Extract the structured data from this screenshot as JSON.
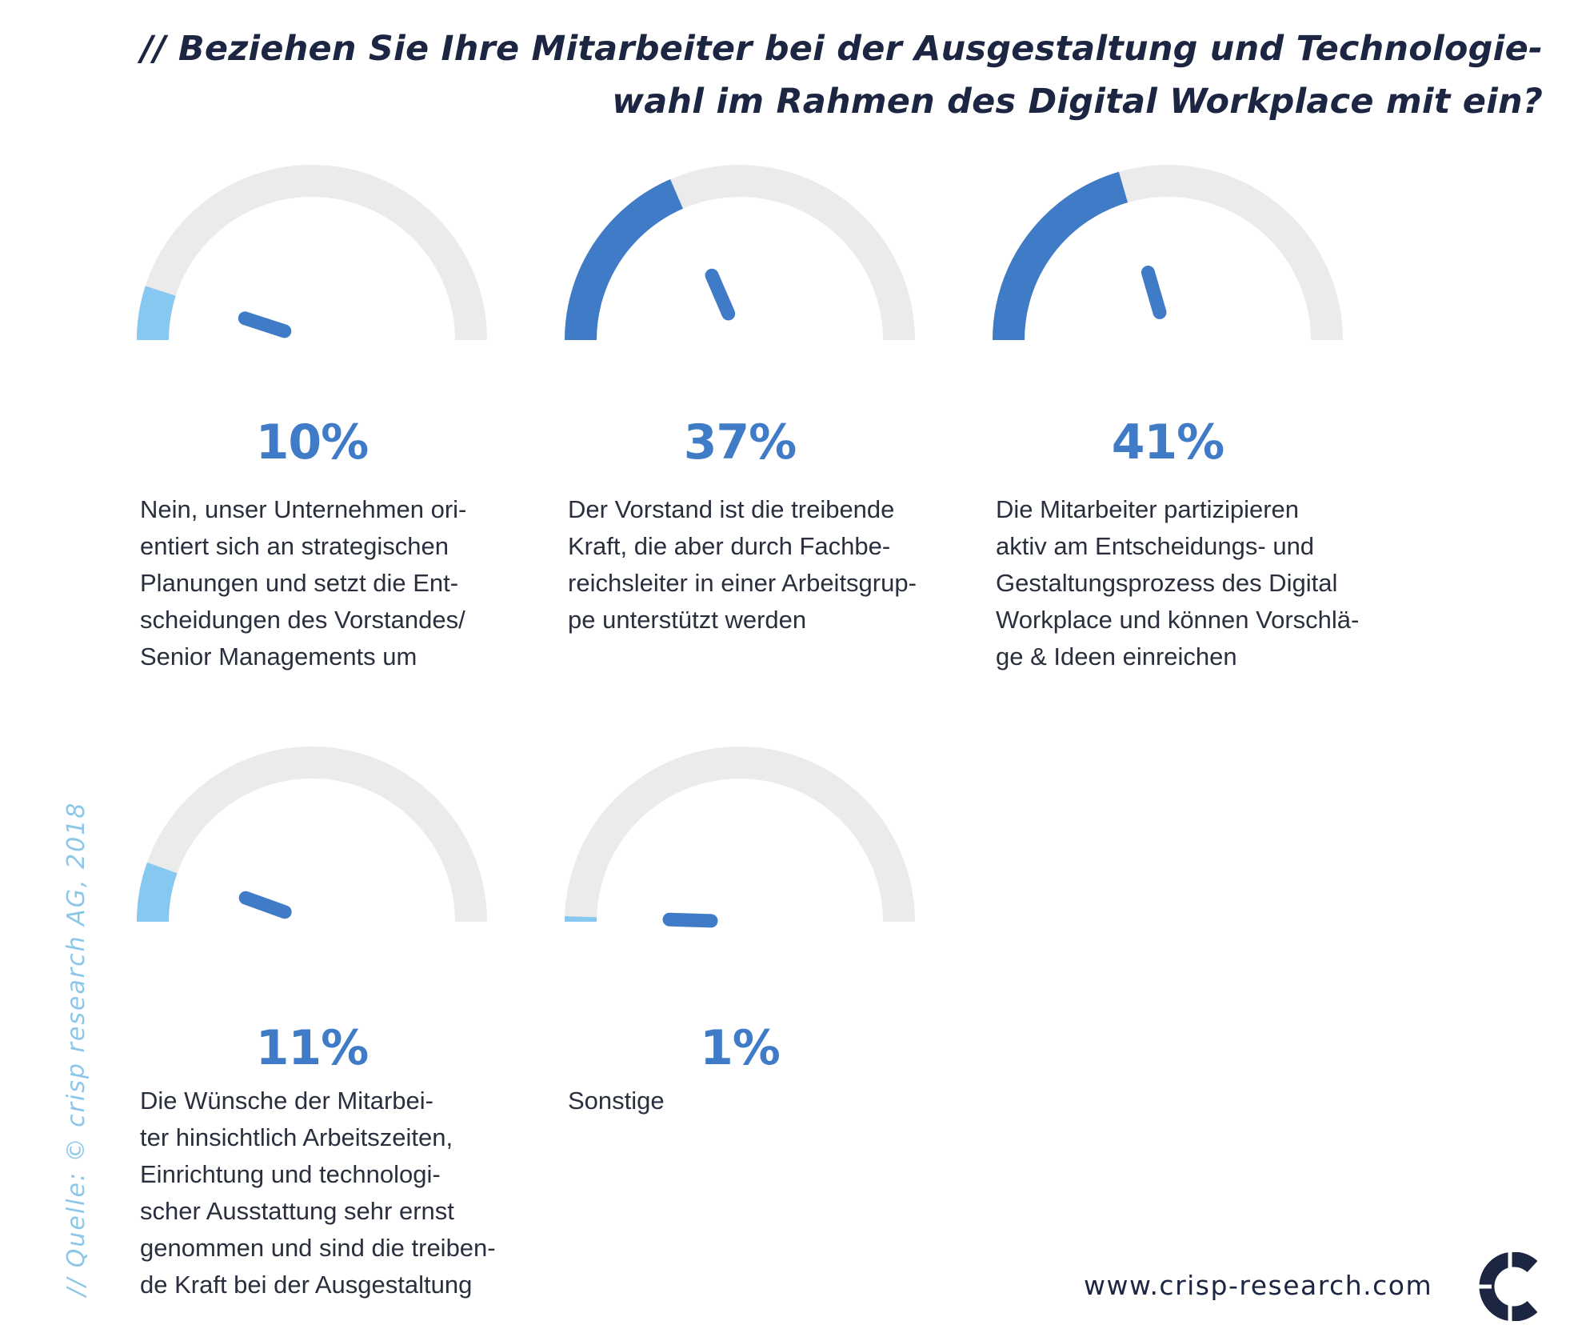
{
  "title_lines": [
    "// Beziehen Sie Ihre Mitarbeiter bei der Ausgestaltung und Technologie-",
    "wahl im Rahmen des Digital Workplace mit ein?"
  ],
  "chart_data": {
    "type": "gauge",
    "title": "// Beziehen Sie Ihre Mitarbeiter bei der Ausgestaltung und Technologiewahl im Rahmen des Digital Workplace mit ein?",
    "range": [
      0,
      100
    ],
    "colors": {
      "track": "#ebebeb",
      "fill_start": "#86c8ef",
      "fill_end": "#3f7bc6",
      "needle": "#3f7bc6"
    },
    "items": [
      {
        "value": 10,
        "label": "10%",
        "description_lines": [
          "Nein, unser Unternehmen ori-",
          "entiert sich an strategischen",
          "Planungen und setzt die Ent-",
          "scheidungen des Vorstandes/",
          "Senior Managements um"
        ]
      },
      {
        "value": 37,
        "label": "37%",
        "description_lines": [
          "Der Vorstand ist die treibende",
          "Kraft, die aber durch Fachbe-",
          "reichsleiter in einer Arbeitsgrup-",
          "pe unterstützt werden"
        ]
      },
      {
        "value": 41,
        "label": "41%",
        "description_lines": [
          "Die Mitarbeiter partizipieren",
          "aktiv am Entscheidungs- und",
          "Gestaltungsprozess des Digital",
          "Workplace und können Vorschlä-",
          "ge & Ideen einreichen"
        ]
      },
      {
        "value": 11,
        "label": "11%",
        "description_lines": [
          "Die Wünsche der Mitarbei-",
          "ter hinsichtlich Arbeitszeiten,",
          "Einrichtung und technologi-",
          "scher Ausstattung sehr ernst",
          "genommen und sind die treiben-",
          "de Kraft bei der Ausgestaltung"
        ]
      },
      {
        "value": 1,
        "label": "1%",
        "description_lines": [
          "Sonstige"
        ]
      }
    ]
  },
  "source_text": "// Quelle: © crisp research AG, 2018",
  "url_text": "www.crisp-research.com",
  "logo_icon": "crisp-research-logo-icon",
  "colors": {
    "title": "#1c2541",
    "accent": "#3f7bc6",
    "source": "#8cc7ea"
  }
}
